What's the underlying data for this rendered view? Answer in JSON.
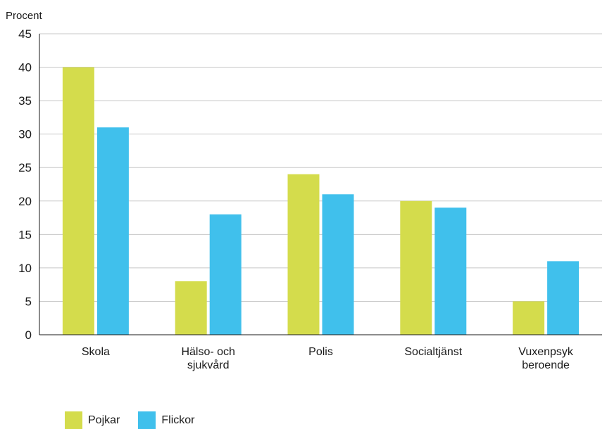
{
  "chart_data": {
    "type": "bar",
    "ylabel": "Procent",
    "xlabel": "",
    "ylim": [
      0,
      45
    ],
    "yticks": [
      0,
      5,
      10,
      15,
      20,
      25,
      30,
      35,
      40,
      45
    ],
    "grid": true,
    "legend_position": "bottom-left",
    "categories": [
      [
        "Skola"
      ],
      [
        "Hälso- och",
        "sjukvård"
      ],
      [
        "Polis"
      ],
      [
        "Socialtjänst"
      ],
      [
        "Vuxenpsyk",
        "beroende"
      ]
    ],
    "series": [
      {
        "name": "Pojkar",
        "color": "#d4dc4c",
        "values": [
          40,
          8,
          24,
          20,
          5
        ]
      },
      {
        "name": "Flickor",
        "color": "#40c0ec",
        "values": [
          31,
          18,
          21,
          19,
          11
        ]
      }
    ]
  }
}
